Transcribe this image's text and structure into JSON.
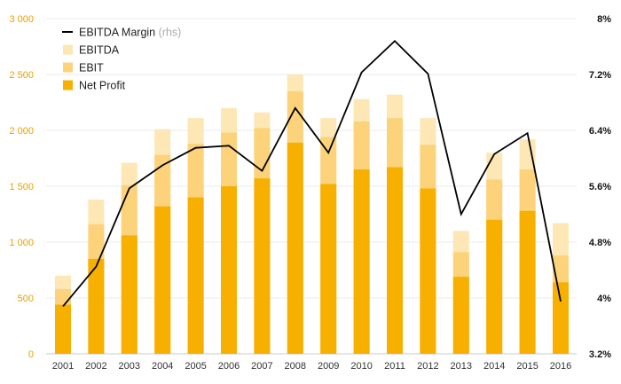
{
  "chart_data": {
    "type": "bar",
    "categories": [
      "2001",
      "2002",
      "2003",
      "2004",
      "2005",
      "2006",
      "2007",
      "2008",
      "2009",
      "2010",
      "2011",
      "2012",
      "2013",
      "2014",
      "2015",
      "2016"
    ],
    "series": [
      {
        "name": "Net Profit",
        "kind": "stacked-bar",
        "color": "#f7b000",
        "values": [
          440,
          850,
          1060,
          1320,
          1400,
          1500,
          1570,
          1890,
          1520,
          1650,
          1670,
          1480,
          690,
          1200,
          1280,
          640
        ]
      },
      {
        "name": "EBIT",
        "kind": "stacked-bar",
        "color": "#fcd37a",
        "values": [
          580,
          1160,
          1510,
          1780,
          1880,
          1980,
          2020,
          2350,
          1940,
          2080,
          2110,
          1870,
          910,
          1560,
          1650,
          880
        ]
      },
      {
        "name": "EBITDA",
        "kind": "stacked-bar",
        "color": "#fde7b5",
        "values": [
          700,
          1380,
          1710,
          2010,
          2110,
          2200,
          2160,
          2500,
          2110,
          2280,
          2320,
          2110,
          1100,
          1800,
          1920,
          1170
        ]
      },
      {
        "name": "EBITDA Margin",
        "name_suffix": "(rhs)",
        "kind": "line",
        "axis": "right",
        "color": "#000000",
        "values": [
          3.88,
          4.45,
          5.57,
          5.9,
          6.15,
          6.18,
          5.82,
          6.72,
          6.08,
          7.23,
          7.68,
          7.21,
          5.2,
          6.06,
          6.36,
          3.95
        ]
      }
    ],
    "left_axis": {
      "ylim": [
        0,
        3000
      ],
      "ticks": [
        0,
        500,
        1000,
        1500,
        2000,
        2500,
        3000
      ],
      "tick_labels": [
        "0",
        "500",
        "1 000",
        "1 500",
        "2 000",
        "2 500",
        "3 000"
      ],
      "color": "#e8a000"
    },
    "right_axis": {
      "ylim": [
        3.2,
        8.0
      ],
      "ticks": [
        3.2,
        4.0,
        4.8,
        5.6,
        6.4,
        7.2,
        8.0
      ],
      "tick_labels": [
        "3.2%",
        "4%",
        "4.8%",
        "5.6%",
        "6.4%",
        "7.2%",
        "8%"
      ],
      "color": "#111111"
    },
    "legend": {
      "placement": "top-left",
      "order": [
        "EBITDA Margin",
        "EBITDA",
        "EBIT",
        "Net Profit"
      ]
    },
    "grid": true
  }
}
